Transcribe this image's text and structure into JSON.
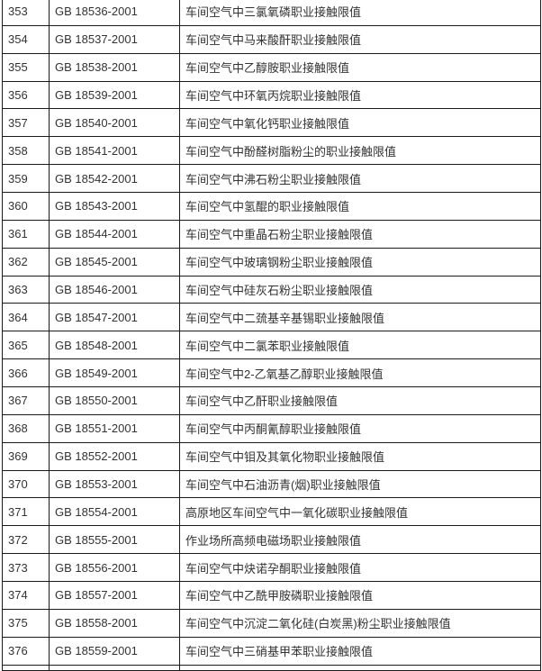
{
  "table": {
    "rows": [
      {
        "no": "353",
        "code": "GB 18536-2001",
        "name": "车间空气中三氯氧磷职业接触限值"
      },
      {
        "no": "354",
        "code": "GB 18537-2001",
        "name": "车间空气中马来酸酐职业接触限值"
      },
      {
        "no": "355",
        "code": "GB 18538-2001",
        "name": "车间空气中乙醇胺职业接触限值"
      },
      {
        "no": "356",
        "code": "GB 18539-2001",
        "name": "车间空气中环氧丙烷职业接触限值"
      },
      {
        "no": "357",
        "code": "GB 18540-2001",
        "name": "车间空气中氧化钙职业接触限值"
      },
      {
        "no": "358",
        "code": "GB 18541-2001",
        "name": "车间空气中酚醛树脂粉尘的职业接触限值"
      },
      {
        "no": "359",
        "code": "GB 18542-2001",
        "name": "车间空气中沸石粉尘职业接触限值"
      },
      {
        "no": "360",
        "code": "GB 18543-2001",
        "name": "车间空气中氢醌的职业接触限值"
      },
      {
        "no": "361",
        "code": "GB 18544-2001",
        "name": "车间空气中重晶石粉尘职业接触限值"
      },
      {
        "no": "362",
        "code": "GB 18545-2001",
        "name": "车间空气中玻璃钢粉尘职业接触限值"
      },
      {
        "no": "363",
        "code": "GB 18546-2001",
        "name": "车间空气中硅灰石粉尘职业接触限值"
      },
      {
        "no": "364",
        "code": "GB 18547-2001",
        "name": "车间空气中二巯基辛基锡职业接触限值"
      },
      {
        "no": "365",
        "code": "GB 18548-2001",
        "name": "车间空气中二氯苯职业接触限值"
      },
      {
        "no": "366",
        "code": "GB 18549-2001",
        "name": "车间空气中2-乙氧基乙醇职业接触限值"
      },
      {
        "no": "367",
        "code": "GB 18550-2001",
        "name": "车间空气中乙酐职业接触限值"
      },
      {
        "no": "368",
        "code": "GB 18551-2001",
        "name": "车间空气中丙酮氰醇职业接触限值"
      },
      {
        "no": "369",
        "code": "GB 18552-2001",
        "name": "车间空气中钼及其氧化物职业接触限值"
      },
      {
        "no": "370",
        "code": "GB 18553-2001",
        "name": "车间空气中石油沥青(烟)职业接触限值"
      },
      {
        "no": "371",
        "code": "GB 18554-2001",
        "name": "高原地区车间空气中一氧化碳职业接触限值"
      },
      {
        "no": "372",
        "code": "GB 18555-2001",
        "name": "作业场所高频电磁场职业接触限值"
      },
      {
        "no": "373",
        "code": "GB 18556-2001",
        "name": "车间空气中炔诺孕酮职业接触限值"
      },
      {
        "no": "374",
        "code": "GB 18557-2001",
        "name": "车间空气中乙酰甲胺磷职业接触限值"
      },
      {
        "no": "375",
        "code": "GB 18558-2001",
        "name": "车间空气中沉淀二氧化硅(白炭黑)粉尘职业接触限值"
      },
      {
        "no": "376",
        "code": "GB 18559-2001",
        "name": "车间空气中三硝基甲苯职业接触限值"
      }
    ]
  }
}
